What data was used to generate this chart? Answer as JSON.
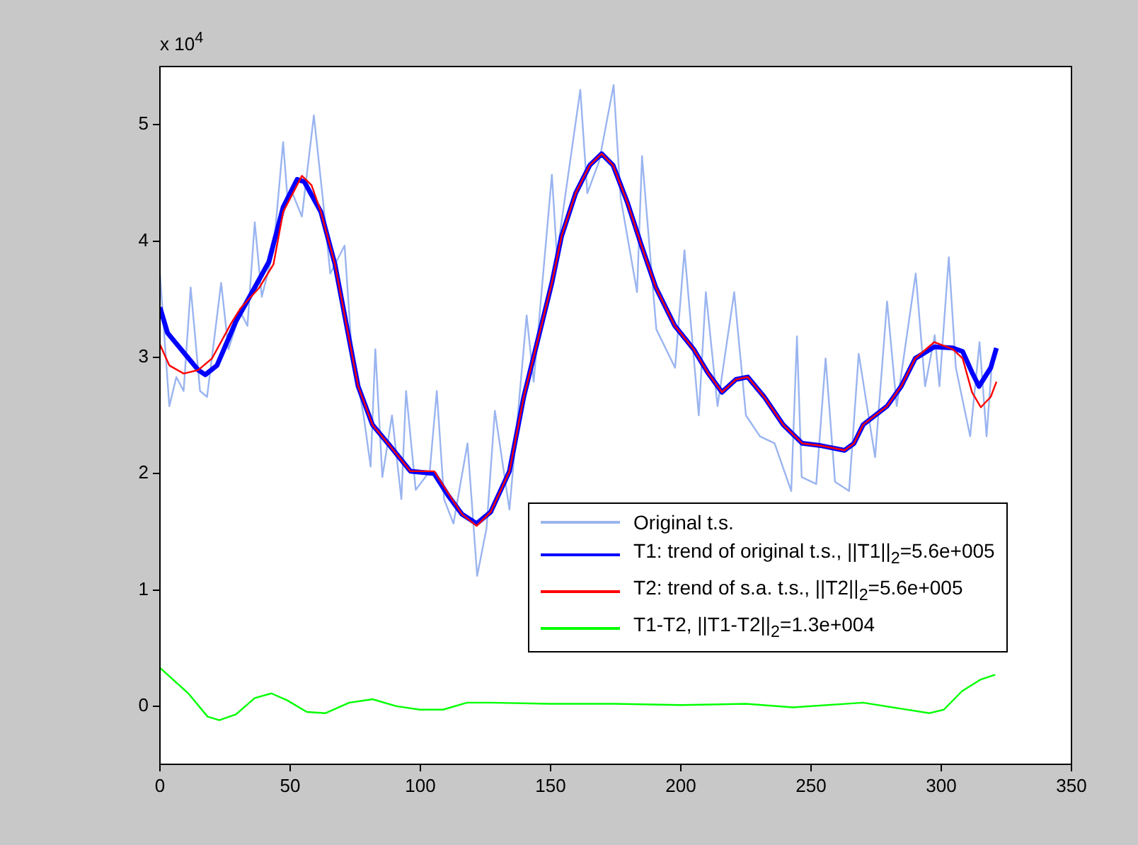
{
  "chart_data": {
    "type": "line",
    "xlim": [
      0,
      350
    ],
    "xticks": [
      0,
      50,
      100,
      150,
      200,
      250,
      300,
      350
    ],
    "ylim": [
      -0.5,
      5.5
    ],
    "yticks": [
      0,
      1,
      2,
      3,
      4,
      5
    ],
    "grid": false,
    "legend": "right",
    "marker": "none",
    "line_style": "solid",
    "annotations": [
      "x 10$^{4}$"
    ],
    "series": [
      {
        "name": "Original t.s.",
        "color": "#9ab4f0",
        "x": [
          0,
          3.6,
          6.3,
          9.1,
          11.8,
          15.4,
          18.1,
          23.5,
          26.3,
          30.9,
          33.6,
          36.4,
          39.1,
          43.6,
          47.3,
          49.1,
          50.9,
          54.5,
          59.1,
          62.7,
          65.4,
          70.9,
          73.6,
          78.2,
          80.9,
          82.7,
          85.4,
          89.1,
          92.7,
          94.5,
          98.2,
          103.6,
          106.3,
          109.1,
          112.7,
          118.1,
          121.8,
          125.4,
          128.6,
          134.2,
          140.8,
          143.5,
          150.5,
          152.4,
          161.4,
          164.1,
          168.7,
          174.2,
          176.9,
          183.2,
          185.1,
          190.6,
          197.8,
          201.4,
          206.9,
          209.6,
          214.1,
          220.5,
          225,
          230.4,
          236,
          242.4,
          244.6,
          246.4,
          252,
          255.6,
          259.2,
          264.6,
          268.3,
          274.6,
          279.2,
          282.9,
          290.2,
          293.8,
          297.5,
          299.3,
          302.9,
          305.6,
          311.1,
          314.7,
          317.4,
          319.6
        ],
        "values": [
          3.72,
          2.58,
          2.83,
          2.71,
          3.6,
          2.71,
          2.66,
          3.64,
          3.07,
          3.39,
          3.27,
          4.16,
          3.52,
          3.92,
          4.85,
          4.33,
          4.41,
          4.21,
          5.08,
          4.33,
          3.72,
          3.96,
          3.07,
          2.5,
          2.06,
          3.07,
          1.97,
          2.5,
          1.78,
          2.71,
          1.86,
          2.02,
          2.71,
          1.78,
          1.57,
          2.26,
          1.12,
          1.53,
          2.54,
          1.69,
          3.36,
          2.79,
          4.57,
          3.88,
          5.3,
          4.41,
          4.69,
          5.34,
          4.37,
          3.56,
          4.73,
          3.24,
          2.91,
          3.92,
          2.5,
          3.56,
          2.58,
          3.56,
          2.5,
          2.32,
          2.26,
          1.85,
          3.18,
          1.97,
          1.91,
          2.99,
          1.93,
          1.85,
          3.03,
          2.14,
          3.48,
          2.58,
          3.72,
          2.75,
          3.19,
          2.75,
          3.86,
          2.91,
          2.32,
          3.13,
          2.32,
          2.99
        ]
      },
      {
        "name": "T1: trend of original t.s., ||T1||$_{2}$=5.6e+005",
        "color": "#0000ff",
        "x": [
          0,
          2.9,
          14.7,
          17.4,
          21.9,
          29.2,
          36.4,
          41.8,
          47.3,
          52.7,
          55.4,
          61.8,
          67.2,
          72.7,
          76.1,
          81.6,
          89,
          96.2,
          105.3,
          110.7,
          116,
          121.6,
          127,
          134.2,
          139.7,
          145.1,
          150.5,
          154.2,
          159.6,
          165,
          169.6,
          174,
          179.5,
          184.9,
          190.4,
          197.7,
          204.9,
          210.3,
          215.8,
          221.2,
          225.7,
          232,
          239.3,
          246.6,
          253.8,
          262.9,
          266.5,
          270,
          279.2,
          284.6,
          290,
          297.3,
          304.4,
          308.2,
          311.8,
          314.5,
          319,
          321.2
        ],
        "values": [
          3.43,
          3.21,
          2.89,
          2.85,
          2.93,
          3.31,
          3.6,
          3.82,
          4.29,
          4.53,
          4.51,
          4.25,
          3.8,
          3.15,
          2.75,
          2.42,
          2.22,
          2.02,
          2,
          1.81,
          1.65,
          1.57,
          1.67,
          2.02,
          2.66,
          3.15,
          3.64,
          4.04,
          4.41,
          4.65,
          4.75,
          4.65,
          4.33,
          3.96,
          3.6,
          3.27,
          3.07,
          2.87,
          2.7,
          2.81,
          2.83,
          2.66,
          2.42,
          2.26,
          2.24,
          2.2,
          2.26,
          2.42,
          2.58,
          2.75,
          2.99,
          3.09,
          3.08,
          3.05,
          2.87,
          2.75,
          2.91,
          3.08
        ]
      },
      {
        "name": "T2: trend of s.a. t.s., ||T2||$_{2}$=5.6e+005",
        "color": "#ff0000",
        "x": [
          0,
          3.6,
          9.1,
          14.7,
          20,
          27.3,
          30.9,
          38.2,
          43.6,
          47.3,
          54.5,
          58.2,
          61.8,
          67.2,
          72.7,
          76.1,
          81.6,
          89,
          96.2,
          105.3,
          110.7,
          116,
          121.6,
          127,
          134.2,
          139.7,
          145.1,
          150.5,
          154.2,
          159.6,
          165,
          169.6,
          174,
          179.5,
          184.9,
          190.4,
          197.7,
          204.9,
          210.3,
          215.8,
          221.2,
          225.7,
          232,
          239.3,
          246.6,
          253.8,
          262.9,
          266.5,
          270,
          279.2,
          284.6,
          290,
          297.3,
          304.4,
          308.2,
          311.8,
          315.2,
          319,
          321.2
        ],
        "values": [
          3.11,
          2.93,
          2.86,
          2.89,
          2.99,
          3.29,
          3.42,
          3.6,
          3.8,
          4.25,
          4.56,
          4.48,
          4.25,
          3.8,
          3.15,
          2.75,
          2.42,
          2.22,
          2.02,
          2.02,
          1.83,
          1.65,
          1.55,
          1.67,
          2.02,
          2.66,
          3.15,
          3.64,
          4.04,
          4.41,
          4.65,
          4.75,
          4.65,
          4.33,
          3.96,
          3.6,
          3.27,
          3.07,
          2.87,
          2.7,
          2.81,
          2.83,
          2.66,
          2.42,
          2.26,
          2.24,
          2.2,
          2.26,
          2.42,
          2.58,
          2.75,
          2.99,
          3.13,
          3.07,
          2.99,
          2.7,
          2.57,
          2.66,
          2.79
        ]
      },
      {
        "name": "T1-T2, ||T1-T2||$_{2}$=1.3e+004",
        "color": "#00ff00",
        "x": [
          0,
          10.9,
          18.3,
          22.8,
          29.2,
          36.4,
          42.8,
          48.9,
          56.4,
          63.6,
          72.7,
          81.6,
          90.8,
          99.8,
          108.7,
          117.9,
          127,
          150,
          175,
          200,
          225,
          243,
          270,
          295.5,
          301,
          308,
          315.2,
          320.7
        ],
        "values": [
          0.33,
          0.11,
          -0.09,
          -0.12,
          -0.07,
          0.07,
          0.11,
          0.05,
          -0.05,
          -0.06,
          0.03,
          0.06,
          0,
          -0.03,
          -0.03,
          0.03,
          0.03,
          0.02,
          0.02,
          0.01,
          0.02,
          -0.01,
          0.03,
          -0.06,
          -0.03,
          0.13,
          0.23,
          0.27
        ]
      }
    ]
  }
}
